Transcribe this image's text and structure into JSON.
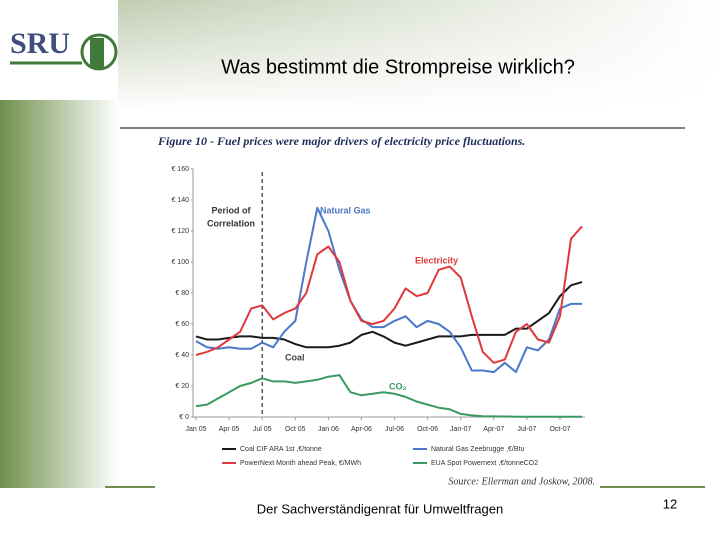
{
  "slide": {
    "logo": "SRU",
    "title": "Was bestimmt die Strompreise wirklich?",
    "figure_title": "Figure 10 - Fuel prices were major drivers of electricity price fluctuations.",
    "source": "Source: Ellerman and Joskow, 2008.",
    "footer": "Der Sachverständigenrat für Umweltfragen",
    "page_number": "12"
  },
  "chart_data": {
    "type": "line",
    "categories": [
      "Jan 05",
      null,
      null,
      "Apr 05",
      null,
      null,
      "Jul 05",
      null,
      null,
      "Oct 05",
      null,
      null,
      "Jan 06",
      null,
      null,
      "Apr-06",
      null,
      null,
      "Jul-06",
      null,
      null,
      "Oct-06",
      null,
      null,
      "Jan-07",
      null,
      null,
      "Apr-07",
      null,
      null,
      "Jul-07",
      null,
      null,
      "Oct-07",
      null,
      null
    ],
    "ylim": [
      0,
      160
    ],
    "yticks": [
      {
        "value": 0,
        "label": "€ 0"
      },
      {
        "value": 20,
        "label": "€ 20"
      },
      {
        "value": 40,
        "label": "€ 40"
      },
      {
        "value": 60,
        "label": "€ 60"
      },
      {
        "value": 80,
        "label": "€ 80"
      },
      {
        "value": 100,
        "label": "€ 100"
      },
      {
        "value": 120,
        "label": "€ 120"
      },
      {
        "value": 140,
        "label": "€ 140"
      },
      {
        "value": 160,
        "label": "€ 160"
      }
    ],
    "grid": false,
    "vline_category": 6,
    "annotations": {
      "period": [
        "Period of",
        "Correlation"
      ],
      "gas": "Natural Gas",
      "electricity": "Electricity",
      "coal": "Coal",
      "co2": "CO₂"
    },
    "series": [
      {
        "name": "Coal CIF ARA 1st ,€/tonne",
        "color": "#1a1a1a",
        "values": [
          52,
          50,
          50,
          51,
          52,
          52,
          51,
          51,
          50,
          47,
          45,
          45,
          45,
          46,
          48,
          53,
          55,
          52,
          48,
          46,
          48,
          50,
          52,
          52,
          52,
          53,
          53,
          53,
          53,
          57,
          57,
          62,
          67,
          78,
          85,
          87
        ]
      },
      {
        "name": "Natural Gas Zeebrugge ,€/Btu",
        "color": "#4a78c8",
        "values": [
          49,
          45,
          44,
          45,
          44,
          44,
          48,
          45,
          55,
          62,
          100,
          135,
          120,
          95,
          75,
          63,
          58,
          58,
          62,
          65,
          58,
          62,
          60,
          55,
          45,
          30,
          30,
          29,
          35,
          29,
          45,
          43,
          50,
          70,
          73,
          73
        ]
      },
      {
        "name": "PowerNext Month ahead Peak, €/MWh",
        "color": "#e0383c",
        "values": [
          40,
          42,
          45,
          50,
          55,
          70,
          72,
          63,
          67,
          70,
          80,
          105,
          110,
          100,
          75,
          62,
          60,
          62,
          70,
          83,
          78,
          80,
          95,
          97,
          90,
          65,
          42,
          35,
          37,
          55,
          60,
          50,
          48,
          65,
          115,
          123
        ]
      },
      {
        "name": "EUA Spot Powernext ,€/tonneCO2",
        "color": "#3a9a60",
        "values": [
          7,
          8,
          12,
          16,
          20,
          22,
          25,
          23,
          23,
          22,
          23,
          24,
          26,
          27,
          16,
          14,
          15,
          16,
          15,
          13,
          10,
          8,
          6,
          5,
          2,
          1,
          0.5,
          0.4,
          0.3,
          0.2,
          0.2,
          0.1,
          0.1,
          0.1,
          0.1,
          0.1
        ]
      }
    ]
  }
}
